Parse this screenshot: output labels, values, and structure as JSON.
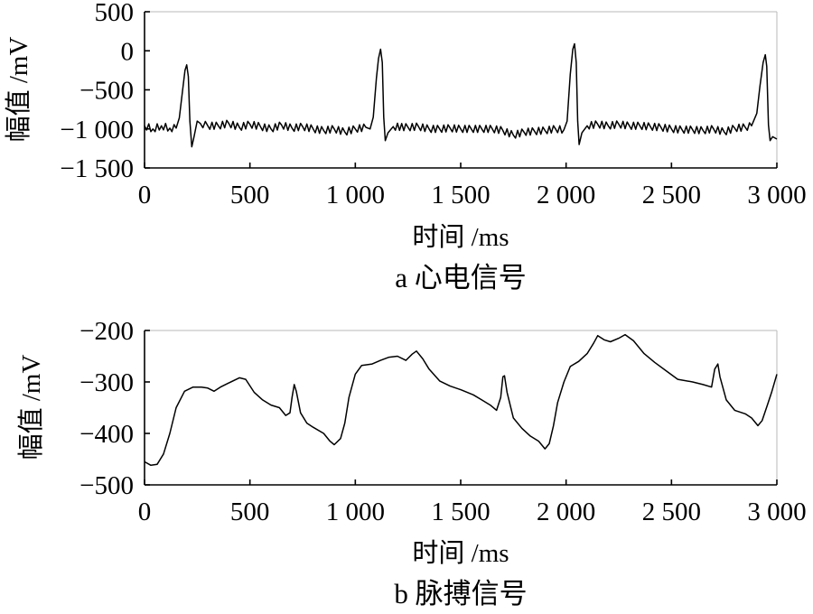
{
  "chart_data": [
    {
      "type": "line",
      "caption": "a 心电信号",
      "xlabel": "时间 /ms",
      "ylabel": "幅值 /mV",
      "xlim": [
        0,
        3000
      ],
      "ylim": [
        -1500,
        500
      ],
      "x_ticks": [
        0,
        500,
        1000,
        1500,
        2000,
        2500,
        3000
      ],
      "x_tick_labels": [
        "0",
        "500",
        "1 000",
        "1 500",
        "2 000",
        "2 500",
        "3 000"
      ],
      "y_ticks": [
        500,
        0,
        -500,
        -1000,
        -1500
      ],
      "y_tick_labels": [
        "500",
        "0",
        "−500",
        "−1 000",
        "−1 500"
      ],
      "grid": false,
      "series": [
        {
          "color": "#000000",
          "points": [
            [
              0,
              -960
            ],
            [
              40,
              -1000
            ],
            [
              80,
              -960
            ],
            [
              120,
              -990
            ],
            [
              150,
              -990
            ],
            [
              165,
              -860
            ],
            [
              180,
              -520
            ],
            [
              192,
              -250
            ],
            [
              200,
              -180
            ],
            [
              208,
              -330
            ],
            [
              215,
              -900
            ],
            [
              224,
              -1230
            ],
            [
              235,
              -1100
            ],
            [
              250,
              -900
            ],
            [
              265,
              -930
            ],
            [
              300,
              -960
            ],
            [
              350,
              -960
            ],
            [
              400,
              -930
            ],
            [
              450,
              -980
            ],
            [
              500,
              -940
            ],
            [
              550,
              -970
            ],
            [
              600,
              -1000
            ],
            [
              650,
              -950
            ],
            [
              700,
              -990
            ],
            [
              750,
              -970
            ],
            [
              800,
              -1000
            ],
            [
              850,
              -1020
            ],
            [
              900,
              -1000
            ],
            [
              950,
              -1040
            ],
            [
              1000,
              -1000
            ],
            [
              1050,
              -980
            ],
            [
              1070,
              -1000
            ],
            [
              1085,
              -850
            ],
            [
              1100,
              -350
            ],
            [
              1110,
              -100
            ],
            [
              1120,
              20
            ],
            [
              1128,
              -150
            ],
            [
              1135,
              -850
            ],
            [
              1142,
              -1150
            ],
            [
              1155,
              -1050
            ],
            [
              1180,
              -970
            ],
            [
              1250,
              -980
            ],
            [
              1300,
              -970
            ],
            [
              1350,
              -1000
            ],
            [
              1400,
              -1000
            ],
            [
              1450,
              -990
            ],
            [
              1500,
              -1000
            ],
            [
              1550,
              -1000
            ],
            [
              1600,
              -1000
            ],
            [
              1650,
              -1000
            ],
            [
              1700,
              -1020
            ],
            [
              1750,
              -1080
            ],
            [
              1800,
              -1040
            ],
            [
              1850,
              -1030
            ],
            [
              1900,
              -1020
            ],
            [
              1950,
              -1000
            ],
            [
              1990,
              -1010
            ],
            [
              2005,
              -900
            ],
            [
              2020,
              -300
            ],
            [
              2032,
              20
            ],
            [
              2040,
              90
            ],
            [
              2048,
              -150
            ],
            [
              2055,
              -900
            ],
            [
              2062,
              -1200
            ],
            [
              2075,
              -1050
            ],
            [
              2100,
              -960
            ],
            [
              2150,
              -940
            ],
            [
              2200,
              -960
            ],
            [
              2250,
              -940
            ],
            [
              2300,
              -960
            ],
            [
              2350,
              -960
            ],
            [
              2400,
              -970
            ],
            [
              2450,
              -980
            ],
            [
              2500,
              -1000
            ],
            [
              2550,
              -1010
            ],
            [
              2600,
              -1010
            ],
            [
              2650,
              -1020
            ],
            [
              2700,
              -1000
            ],
            [
              2750,
              -1040
            ],
            [
              2800,
              -990
            ],
            [
              2850,
              -980
            ],
            [
              2880,
              -960
            ],
            [
              2905,
              -800
            ],
            [
              2920,
              -450
            ],
            [
              2935,
              -150
            ],
            [
              2945,
              -50
            ],
            [
              2952,
              -200
            ],
            [
              2960,
              -950
            ],
            [
              2968,
              -1150
            ],
            [
              2980,
              -1100
            ],
            [
              3000,
              -1130
            ]
          ]
        }
      ]
    },
    {
      "type": "line",
      "caption": "b 脉搏信号",
      "xlabel": "时间 /ms",
      "ylabel": "幅值 /mV",
      "xlim": [
        0,
        3000
      ],
      "ylim": [
        -500,
        -200
      ],
      "x_ticks": [
        0,
        500,
        1000,
        1500,
        2000,
        2500,
        3000
      ],
      "x_tick_labels": [
        "0",
        "500",
        "1 000",
        "1 500",
        "2 000",
        "2 500",
        "3 000"
      ],
      "y_ticks": [
        -200,
        -300,
        -400,
        -500
      ],
      "y_tick_labels": [
        "−200",
        "−300",
        "−400",
        "−500"
      ],
      "grid": false,
      "series": [
        {
          "color": "#000000",
          "points": [
            [
              0,
              -455
            ],
            [
              30,
              -462
            ],
            [
              60,
              -460
            ],
            [
              90,
              -440
            ],
            [
              120,
              -400
            ],
            [
              150,
              -350
            ],
            [
              190,
              -318
            ],
            [
              230,
              -310
            ],
            [
              270,
              -310
            ],
            [
              300,
              -312
            ],
            [
              330,
              -318
            ],
            [
              360,
              -310
            ],
            [
              400,
              -302
            ],
            [
              450,
              -292
            ],
            [
              480,
              -295
            ],
            [
              520,
              -320
            ],
            [
              560,
              -335
            ],
            [
              600,
              -345
            ],
            [
              640,
              -350
            ],
            [
              670,
              -365
            ],
            [
              690,
              -360
            ],
            [
              700,
              -330
            ],
            [
              710,
              -305
            ],
            [
              720,
              -318
            ],
            [
              740,
              -360
            ],
            [
              770,
              -380
            ],
            [
              800,
              -388
            ],
            [
              850,
              -400
            ],
            [
              880,
              -415
            ],
            [
              900,
              -422
            ],
            [
              930,
              -410
            ],
            [
              950,
              -380
            ],
            [
              970,
              -330
            ],
            [
              1000,
              -285
            ],
            [
              1030,
              -268
            ],
            [
              1080,
              -265
            ],
            [
              1120,
              -258
            ],
            [
              1160,
              -252
            ],
            [
              1200,
              -250
            ],
            [
              1240,
              -258
            ],
            [
              1270,
              -246
            ],
            [
              1290,
              -240
            ],
            [
              1320,
              -255
            ],
            [
              1350,
              -275
            ],
            [
              1400,
              -298
            ],
            [
              1450,
              -308
            ],
            [
              1500,
              -315
            ],
            [
              1560,
              -325
            ],
            [
              1600,
              -335
            ],
            [
              1640,
              -345
            ],
            [
              1670,
              -355
            ],
            [
              1690,
              -330
            ],
            [
              1700,
              -290
            ],
            [
              1708,
              -288
            ],
            [
              1720,
              -320
            ],
            [
              1750,
              -370
            ],
            [
              1790,
              -390
            ],
            [
              1830,
              -405
            ],
            [
              1870,
              -415
            ],
            [
              1900,
              -430
            ],
            [
              1920,
              -420
            ],
            [
              1940,
              -385
            ],
            [
              1960,
              -340
            ],
            [
              1990,
              -300
            ],
            [
              2020,
              -270
            ],
            [
              2060,
              -260
            ],
            [
              2100,
              -245
            ],
            [
              2130,
              -225
            ],
            [
              2150,
              -210
            ],
            [
              2180,
              -218
            ],
            [
              2210,
              -222
            ],
            [
              2250,
              -215
            ],
            [
              2280,
              -208
            ],
            [
              2320,
              -220
            ],
            [
              2370,
              -245
            ],
            [
              2420,
              -262
            ],
            [
              2480,
              -280
            ],
            [
              2530,
              -295
            ],
            [
              2600,
              -300
            ],
            [
              2650,
              -305
            ],
            [
              2690,
              -310
            ],
            [
              2705,
              -275
            ],
            [
              2720,
              -265
            ],
            [
              2730,
              -290
            ],
            [
              2760,
              -335
            ],
            [
              2800,
              -355
            ],
            [
              2850,
              -362
            ],
            [
              2880,
              -370
            ],
            [
              2910,
              -385
            ],
            [
              2930,
              -375
            ],
            [
              2955,
              -345
            ],
            [
              2975,
              -320
            ],
            [
              3000,
              -285
            ]
          ]
        }
      ]
    }
  ]
}
